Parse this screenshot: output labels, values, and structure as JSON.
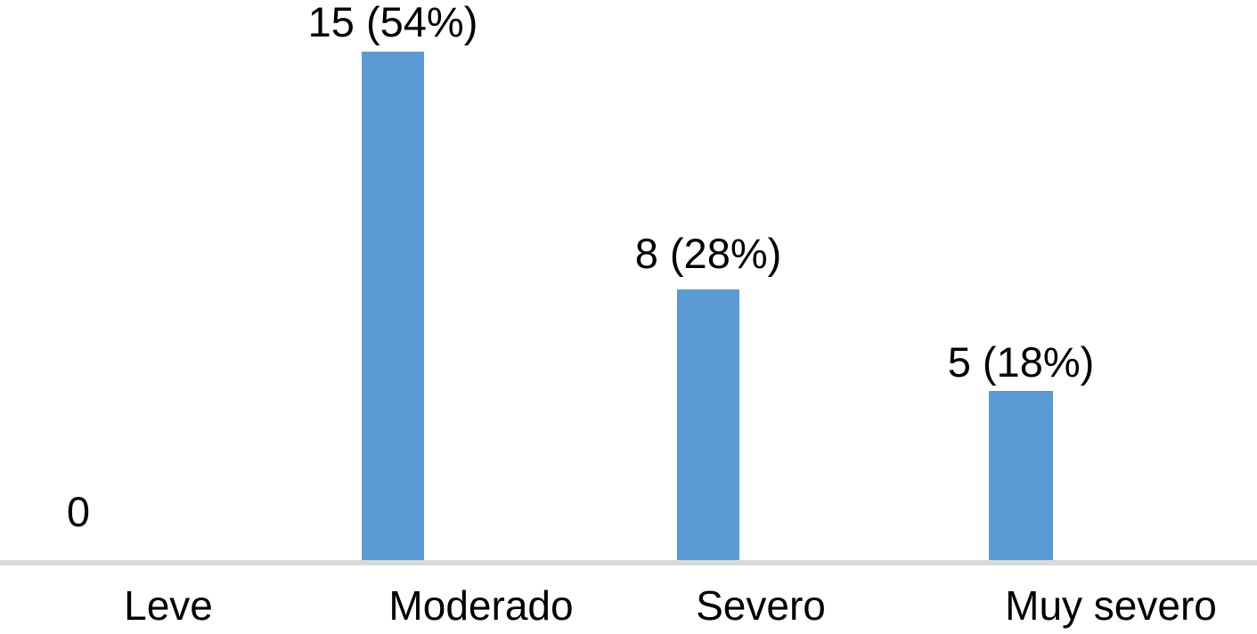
{
  "chart_data": {
    "type": "bar",
    "title": "",
    "xlabel": "",
    "ylabel": "",
    "categories": [
      "Leve",
      "Moderado",
      "Severo",
      "Muy severo"
    ],
    "values": [
      0,
      15,
      8,
      5
    ],
    "percentages": [
      0,
      54,
      28,
      18
    ],
    "data_labels": [
      "0",
      "15 (54%)",
      "8 (28%)",
      "5 (18%)"
    ],
    "ylim": [
      0,
      15
    ],
    "grid": false,
    "legend": false,
    "axis_ticks_visible": false,
    "bar_color": "#5B9BD5",
    "axis_line_color": "#D9D9D9",
    "background_color": "#FFFFFF",
    "text_color": "#000000"
  }
}
